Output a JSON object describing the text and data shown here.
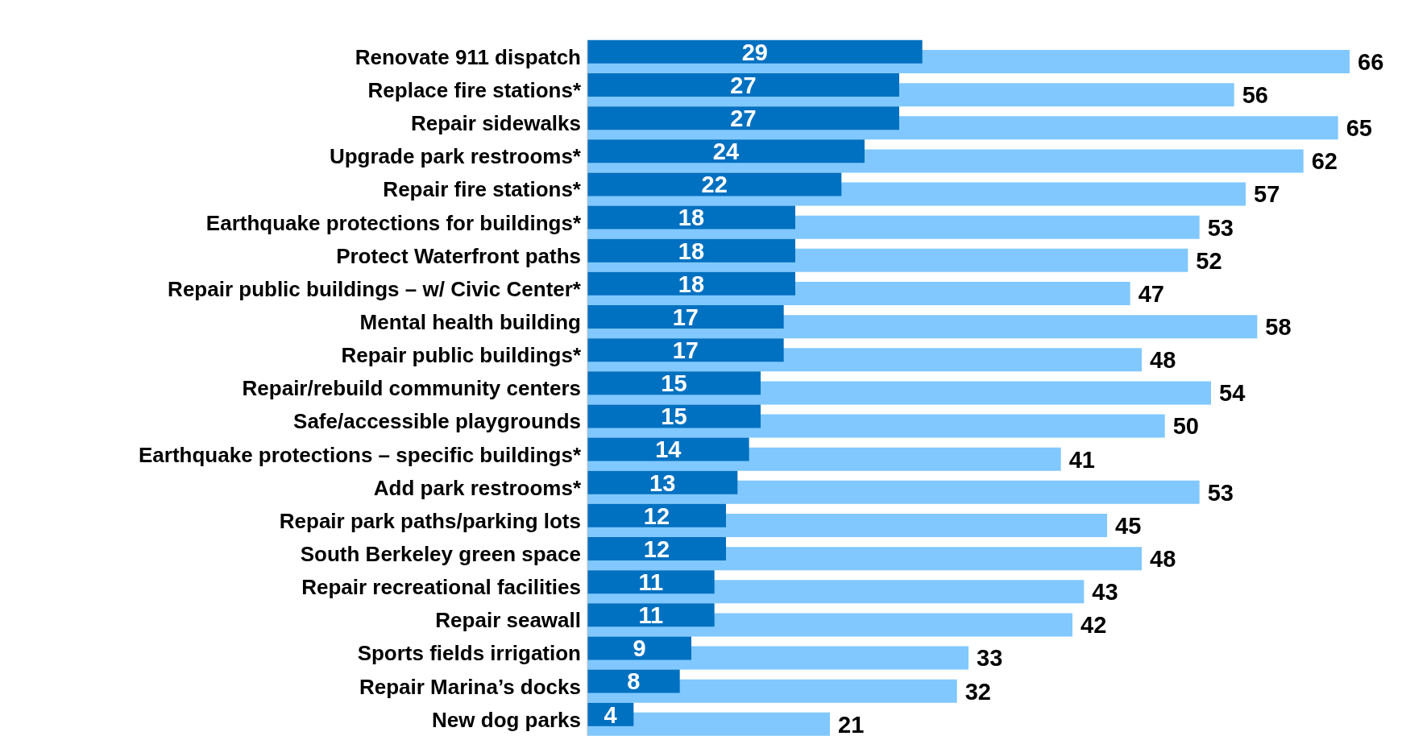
{
  "chart_data": {
    "type": "bar",
    "orientation": "horizontal",
    "data_labels": true,
    "categories": [
      "Renovate 911 dispatch",
      "Replace fire stations*",
      "Repair sidewalks",
      "Upgrade park restrooms*",
      "Repair fire stations*",
      "Earthquake protections for buildings*",
      "Protect Waterfront paths",
      "Repair public buildings – w/ Civic Center*",
      "Mental health building",
      "Repair public buildings*",
      "Repair/rebuild community centers",
      "Safe/accessible playgrounds",
      "Earthquake protections – specific buildings*",
      "Add park restrooms*",
      "Repair park paths/parking lots",
      "South Berkeley green space",
      "Repair recreational facilities",
      "Repair seawall",
      "Sports fields irrigation",
      "Repair Marina’s docks",
      "New dog parks"
    ],
    "series": [
      {
        "color": "#80c8ff",
        "values": [
          66,
          56,
          65,
          62,
          57,
          53,
          52,
          47,
          58,
          48,
          54,
          50,
          41,
          53,
          45,
          48,
          43,
          42,
          33,
          32,
          21
        ]
      },
      {
        "color": "#0070c0",
        "values": [
          29,
          27,
          27,
          24,
          22,
          18,
          18,
          18,
          17,
          17,
          15,
          15,
          14,
          13,
          12,
          12,
          11,
          11,
          9,
          8,
          4
        ]
      }
    ]
  }
}
